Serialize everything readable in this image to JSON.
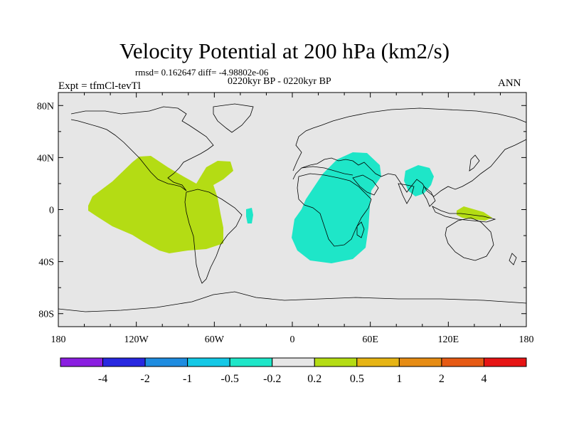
{
  "title": "Velocity Potential at 200 hPa (km2/s)",
  "stats": "rmsd= 0.162647 diff= -4.98802e-06",
  "subtitle": "0220kyr BP - 0220kyr BP",
  "experiment": "Expt = tfmCl-tevTl",
  "season": "ANN",
  "map": {
    "projection": "cylindrical-equidistant",
    "lon_range": [
      -180,
      180
    ],
    "lat_range": [
      -90,
      90
    ],
    "background_color": "#e6e6e6",
    "coastline_color": "#000000",
    "y_ticks": [
      "80N",
      "40N",
      "0",
      "40S",
      "80S"
    ],
    "x_ticks": [
      "180",
      "120W",
      "60W",
      "0",
      "60E",
      "120E",
      "180"
    ]
  },
  "colorbar": {
    "colors": [
      "#8a1ee0",
      "#2828e0",
      "#1e8ce0",
      "#14c8e6",
      "#1ee6c8",
      "#e6e6e6",
      "#b4dc14",
      "#e6b414",
      "#e68c14",
      "#e65a14",
      "#e61414"
    ],
    "labels": [
      "-4",
      "-2",
      "-1",
      "-0.5",
      "-0.2",
      "0.2",
      "0.5",
      "1",
      "2",
      "4"
    ]
  },
  "anomaly_regions": [
    {
      "name": "eastern-pacific-positive",
      "sign": "positive",
      "color": "#b4dc14"
    },
    {
      "name": "africa-indian-ocean-negative",
      "sign": "negative",
      "color": "#1ee6c8"
    },
    {
      "name": "south-asia-negative",
      "sign": "negative",
      "color": "#1ee6c8"
    },
    {
      "name": "mid-atlantic-negative",
      "sign": "negative",
      "color": "#1ee6c8"
    },
    {
      "name": "maritime-continent-positive",
      "sign": "positive",
      "color": "#b4dc14"
    }
  ]
}
